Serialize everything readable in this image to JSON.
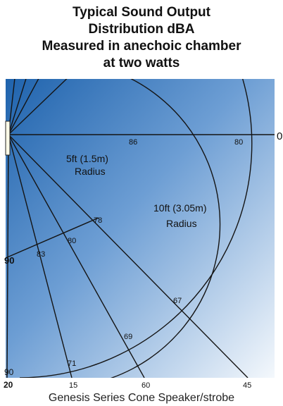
{
  "title": {
    "line1": "Typical Sound Output",
    "line2": "Distribution dBA",
    "line3": "Measured in anechoic chamber",
    "line4": "at two watts"
  },
  "diagram": {
    "radius_labels": {
      "inner_line1": "5ft (1.5m)",
      "inner_line2": "Radius",
      "outer_line1": "10ft (3.05m)",
      "outer_line2": "Radius"
    },
    "axis_labels": {
      "axis_zero": "0",
      "left_mid": "90",
      "bottom_left": "90",
      "inner_axis": "86",
      "outer_axis": "80"
    },
    "inner_arc_labels": [
      "78",
      "80",
      "83"
    ],
    "outer_arc_labels": [
      "67",
      "69",
      "71"
    ],
    "bottom_labels": [
      "20",
      "15",
      "60",
      "45"
    ]
  },
  "caption": "Genesis Series Cone Speaker/strobe"
}
